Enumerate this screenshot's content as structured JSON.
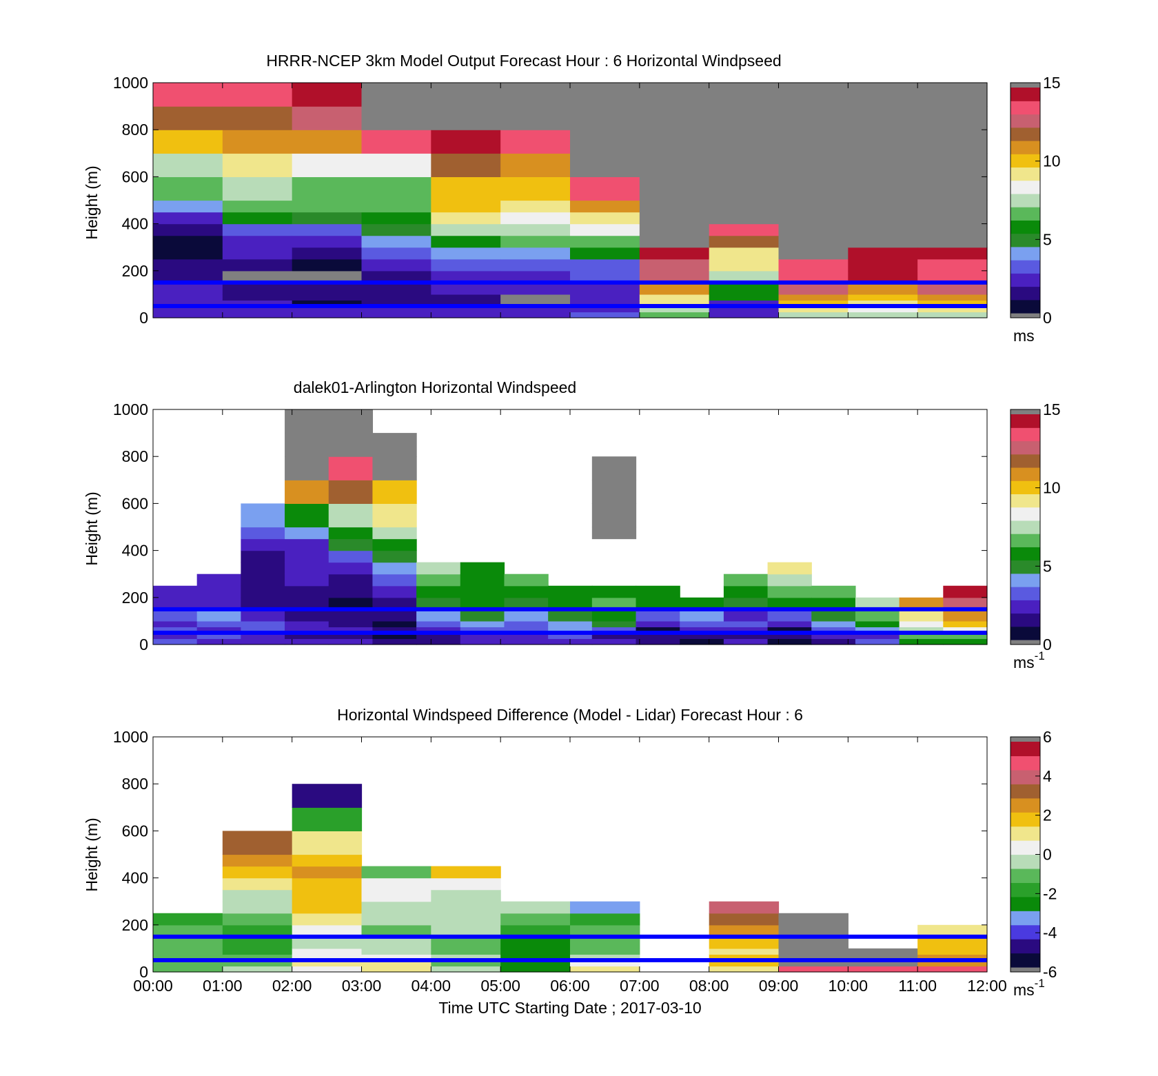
{
  "colors": {
    "speed_scale": [
      "#0a0a3a",
      "#2a0a80",
      "#4a20c0",
      "#5a5ae0",
      "#7aa0f0",
      "#2a8a2a",
      "#0a8a0a",
      "#5ab85a",
      "#b8dcb8",
      "#f0f0f0",
      "#f0e68c",
      "#f0c010",
      "#d89020",
      "#a06030",
      "#c86070",
      "#f05070",
      "#b0102a"
    ],
    "diff_scale": [
      "#0a0a3a",
      "#2a0a80",
      "#4a3ae0",
      "#7aa0f0",
      "#0a8a0a",
      "#2aa02a",
      "#5ab85a",
      "#b8dcb8",
      "#f0f0f0",
      "#f0e68c",
      "#f0c010",
      "#d89020",
      "#a06030",
      "#c86070",
      "#f05070",
      "#b0102a"
    ],
    "na": "#808080",
    "ref_line": "#0000ff"
  },
  "chart_data": [
    {
      "type": "heatmap",
      "title": "HRRR-NCEP 3km Model Output   Forecast Hour : 6 Horizontal Windpseed",
      "ylabel": "Height (m)",
      "ylim": [
        0,
        1000
      ],
      "yticks": [
        "0",
        "200",
        "400",
        "600",
        "800",
        "1000"
      ],
      "x_categories": [
        "00:00",
        "01:00",
        "02:00",
        "03:00",
        "04:00",
        "05:00",
        "06:00",
        "07:00",
        "08:00",
        "09:00",
        "10:00",
        "11:00",
        "12:00"
      ],
      "colorbar": {
        "min": 0,
        "max": 15,
        "ticks": [
          "0",
          "5",
          "10",
          "15"
        ],
        "unit": "ms"
      },
      "ref_heights": [
        150,
        50
      ],
      "levels": [
        0,
        25,
        50,
        75,
        100,
        150,
        200,
        250,
        300,
        350,
        400,
        450,
        500,
        600,
        700,
        800,
        900,
        1000
      ],
      "columns": [
        [
          2,
          2,
          2,
          2,
          2,
          1,
          1,
          0,
          0,
          1,
          2,
          4,
          7,
          8,
          11,
          13,
          15
        ],
        [
          2,
          2,
          2,
          1,
          1,
          -1,
          1,
          2,
          2,
          3,
          6,
          7,
          8,
          10,
          12,
          13,
          15
        ],
        [
          2,
          2,
          0,
          1,
          1,
          -1,
          0,
          1,
          2,
          3,
          5,
          7,
          7,
          9,
          12,
          14,
          16
        ],
        [
          2,
          2,
          1,
          1,
          1,
          1,
          2,
          3,
          4,
          5,
          6,
          7,
          7,
          9,
          15,
          -1,
          -1
        ],
        [
          2,
          2,
          1,
          1,
          2,
          2,
          3,
          4,
          6,
          8,
          10,
          11,
          11,
          13,
          16,
          -1,
          -1
        ],
        [
          2,
          2,
          -1,
          -1,
          2,
          2,
          3,
          4,
          7,
          8,
          9,
          10,
          11,
          12,
          15,
          -1,
          -1
        ],
        [
          3,
          2,
          2,
          2,
          2,
          3,
          3,
          6,
          7,
          9,
          10,
          12,
          15,
          -1,
          -1,
          -1,
          -1
        ],
        [
          7,
          8,
          10,
          10,
          12,
          14,
          14,
          16,
          -1,
          -1,
          -1,
          -1,
          -1,
          -1,
          -1,
          -1,
          -1
        ],
        [
          2,
          2,
          2,
          6,
          6,
          8,
          10,
          10,
          13,
          15,
          -1,
          -1,
          -1,
          -1,
          -1,
          -1,
          -1
        ],
        [
          8,
          10,
          11,
          12,
          14,
          15,
          15,
          -1,
          -1,
          -1,
          -1,
          -1,
          -1,
          -1,
          -1,
          -1,
          -1
        ],
        [
          8,
          9,
          10,
          11,
          12,
          16,
          16,
          16,
          -1,
          -1,
          -1,
          -1,
          -1,
          -1,
          -1,
          -1,
          -1
        ],
        [
          8,
          10,
          11,
          12,
          14,
          15,
          15,
          16,
          -1,
          -1,
          -1,
          -1,
          -1,
          -1,
          -1,
          -1,
          -1
        ]
      ]
    },
    {
      "type": "heatmap",
      "title": "dalek01-Arlington  Horizontal Windspeed",
      "ylabel": "Height (m)",
      "ylim": [
        0,
        1000
      ],
      "yticks": [
        "0",
        "200",
        "400",
        "600",
        "800",
        "1000"
      ],
      "x_categories": [
        "00:00",
        "01:00",
        "02:00",
        "03:00",
        "04:00",
        "05:00",
        "06:00",
        "07:00",
        "08:00",
        "09:00",
        "10:00",
        "11:00",
        "12:00"
      ],
      "colorbar": {
        "min": 0,
        "max": 15,
        "ticks": [
          "0",
          "5",
          "10",
          "15"
        ],
        "unit": "ms",
        "unit_sup": "-1"
      },
      "ref_heights": [
        150,
        50
      ],
      "levels": [
        0,
        25,
        50,
        75,
        100,
        150,
        200,
        250,
        300,
        350,
        400,
        450,
        500,
        600,
        700,
        800,
        900,
        1000
      ],
      "columns": [
        [
          3,
          2,
          3,
          2,
          3,
          2,
          2,
          -2,
          -2,
          -2,
          -2,
          -2,
          -2,
          -2,
          -2,
          -2,
          -2
        ],
        [
          2,
          3,
          2,
          3,
          4,
          2,
          2,
          2,
          -2,
          -2,
          -2,
          -2,
          -2,
          -2,
          -2,
          -2,
          -2
        ],
        [
          2,
          2,
          3,
          3,
          2,
          1,
          1,
          1,
          1,
          1,
          2,
          3,
          4,
          -2,
          -2,
          -2,
          -2
        ],
        [
          2,
          1,
          2,
          2,
          1,
          1,
          1,
          2,
          2,
          2,
          2,
          4,
          6,
          12,
          -1,
          -1,
          -1
        ],
        [
          2,
          1,
          2,
          1,
          1,
          0,
          1,
          1,
          2,
          3,
          5,
          6,
          8,
          13,
          15,
          -1,
          -1
        ],
        [
          1,
          0,
          1,
          0,
          1,
          1,
          2,
          3,
          4,
          5,
          6,
          8,
          10,
          11,
          -1,
          -1,
          -2
        ],
        [
          1,
          1,
          2,
          3,
          4,
          5,
          6,
          7,
          8,
          -2,
          -2,
          -2,
          -2,
          -2,
          -2,
          -2,
          -2
        ],
        [
          2,
          2,
          3,
          4,
          5,
          6,
          6,
          6,
          6,
          -2,
          -2,
          -2,
          -2,
          -2,
          -2,
          -2,
          -2
        ],
        [
          2,
          2,
          3,
          3,
          4,
          5,
          6,
          7,
          -2,
          -2,
          -2,
          -2,
          -2,
          -2,
          -2,
          -2,
          -2
        ],
        [
          2,
          3,
          4,
          4,
          5,
          6,
          6,
          -2,
          -2,
          -2,
          -2,
          -2,
          -2,
          -2,
          -2,
          -2,
          -2
        ],
        [
          2,
          1,
          3,
          5,
          6,
          7,
          6,
          -2,
          -2,
          -2,
          -2,
          -1,
          -1,
          -1,
          -1,
          -2,
          -2
        ],
        [
          1,
          1,
          0,
          2,
          3,
          6,
          6,
          -2,
          -2,
          -2,
          -2,
          -2,
          -2,
          -2,
          -2,
          -2,
          -2
        ],
        [
          0,
          1,
          2,
          3,
          4,
          6,
          -2,
          -2,
          -2,
          -2,
          -2,
          -2,
          -2,
          -2,
          -2,
          -2,
          -2
        ],
        [
          2,
          1,
          2,
          3,
          2,
          5,
          6,
          7,
          -2,
          -2,
          -2,
          -2,
          -2,
          -2,
          -2,
          -2,
          -2
        ],
        [
          0,
          1,
          0,
          2,
          3,
          6,
          7,
          8,
          10,
          -2,
          -2,
          -2,
          -2,
          -2,
          -2,
          -2,
          -2
        ],
        [
          1,
          2,
          3,
          4,
          5,
          6,
          7,
          -2,
          -2,
          -2,
          -2,
          -2,
          -2,
          -2,
          -2,
          -2,
          -2
        ],
        [
          3,
          2,
          4,
          6,
          7,
          8,
          -2,
          -2,
          -2,
          -2,
          -2,
          -2,
          -2,
          -2,
          -2,
          -2,
          -2
        ],
        [
          6,
          7,
          8,
          9,
          10,
          12,
          -2,
          -2,
          -2,
          -2,
          -2,
          -2,
          -2,
          -2,
          -2,
          -2,
          -2
        ],
        [
          6,
          7,
          9,
          11,
          12,
          14,
          16,
          -2,
          -2,
          -2,
          -2,
          -2,
          -2,
          -2,
          -2,
          -2,
          -2
        ]
      ]
    },
    {
      "type": "heatmap",
      "title": "Horizontal Windspeed Difference (Model - Lidar) Forecast Hour : 6",
      "xlabel": "Time UTC  Starting Date ; 2017-03-10",
      "ylabel": "Height (m)",
      "ylim": [
        0,
        1000
      ],
      "yticks": [
        "0",
        "200",
        "400",
        "600",
        "800",
        "1000"
      ],
      "x_categories": [
        "00:00",
        "01:00",
        "02:00",
        "03:00",
        "04:00",
        "05:00",
        "06:00",
        "07:00",
        "08:00",
        "09:00",
        "10:00",
        "11:00",
        "12:00"
      ],
      "colorbar": {
        "min": -6,
        "max": 6,
        "ticks": [
          "-6",
          "-4",
          "-2",
          "0",
          "2",
          "4",
          "6"
        ],
        "unit": "ms",
        "unit_sup": "-1"
      },
      "ref_heights": [
        150,
        50
      ],
      "levels": [
        0,
        25,
        50,
        75,
        100,
        150,
        200,
        250,
        300,
        350,
        400,
        450,
        500,
        600,
        700,
        800,
        900,
        1000
      ],
      "columns": [
        [
          6,
          6,
          6,
          6,
          6,
          6,
          5,
          -2,
          -2,
          -2,
          -2,
          -2,
          -2,
          -2,
          -2,
          -2,
          -2
        ],
        [
          7,
          6,
          6,
          5,
          5,
          5,
          6,
          7,
          7,
          9,
          10,
          11,
          12,
          -2,
          -2,
          -2,
          -2
        ],
        [
          8,
          9,
          8,
          8,
          7,
          8,
          9,
          10,
          10,
          10,
          11,
          10,
          9,
          5,
          1,
          -2,
          -2
        ],
        [
          9,
          9,
          8,
          7,
          7,
          6,
          7,
          7,
          8,
          8,
          6,
          -2,
          -2,
          -2,
          -2,
          -2,
          -2
        ],
        [
          7,
          6,
          7,
          6,
          6,
          7,
          7,
          7,
          7,
          8,
          10,
          -2,
          -2,
          -2,
          -2,
          -2,
          -2
        ],
        [
          4,
          4,
          4,
          4,
          4,
          5,
          6,
          7,
          -2,
          -2,
          -2,
          -2,
          -2,
          -2,
          -2,
          -2,
          -2
        ],
        [
          9,
          8,
          7,
          6,
          6,
          6,
          5,
          3,
          -2,
          -2,
          -2,
          -2,
          -2,
          -2,
          -2,
          -2,
          -2
        ],
        [
          -2,
          -2,
          -2,
          -2,
          -2,
          -2,
          -2,
          -2,
          -2,
          -2,
          -2,
          -2,
          -2,
          -2,
          -2,
          -2,
          -2
        ],
        [
          9,
          10,
          10,
          9,
          10,
          11,
          12,
          13,
          -2,
          -2,
          -2,
          -2,
          -2,
          -2,
          -2,
          -2,
          -2
        ],
        [
          14,
          -1,
          -1,
          -1,
          -1,
          -1,
          -1,
          -2,
          -2,
          -2,
          -2,
          -2,
          -2,
          -2,
          -2,
          -2,
          -2
        ],
        [
          14,
          -1,
          -1,
          -1,
          -2,
          -2,
          -2,
          -2,
          -2,
          -2,
          -2,
          -2,
          -2,
          -2,
          -2,
          -2,
          -2
        ],
        [
          14,
          11,
          11,
          10,
          10,
          9,
          -2,
          -2,
          -2,
          -2,
          -2,
          -2,
          -2,
          -2,
          -2,
          -2,
          -2
        ]
      ]
    }
  ]
}
